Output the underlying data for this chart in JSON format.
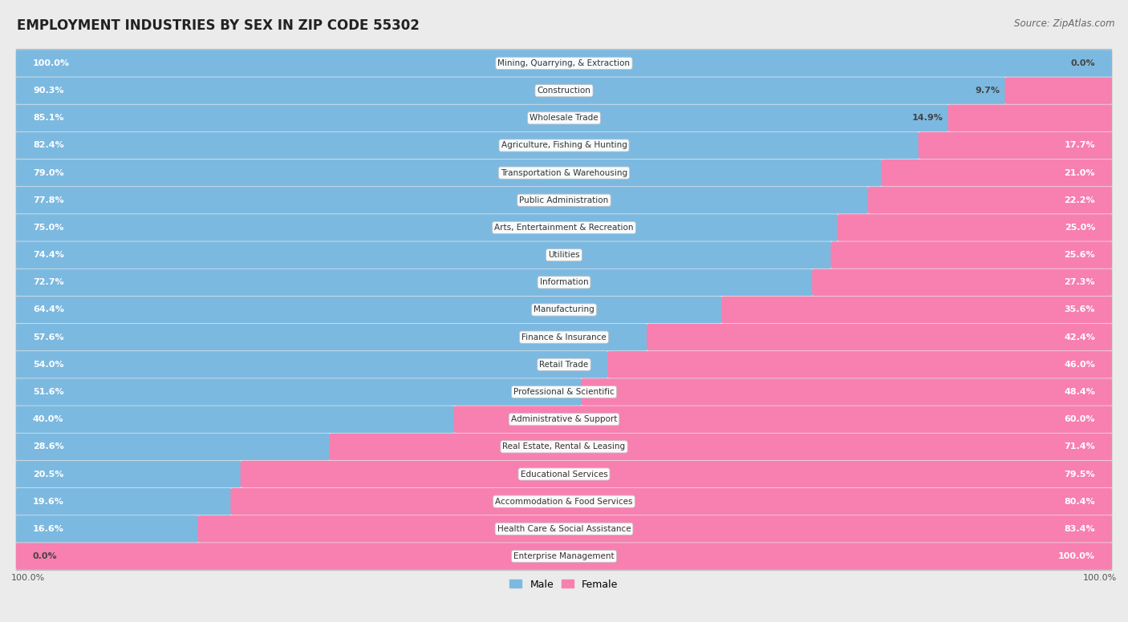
{
  "title": "EMPLOYMENT INDUSTRIES BY SEX IN ZIP CODE 55302",
  "source": "Source: ZipAtlas.com",
  "industries": [
    "Mining, Quarrying, & Extraction",
    "Construction",
    "Wholesale Trade",
    "Agriculture, Fishing & Hunting",
    "Transportation & Warehousing",
    "Public Administration",
    "Arts, Entertainment & Recreation",
    "Utilities",
    "Information",
    "Manufacturing",
    "Finance & Insurance",
    "Retail Trade",
    "Professional & Scientific",
    "Administrative & Support",
    "Real Estate, Rental & Leasing",
    "Educational Services",
    "Accommodation & Food Services",
    "Health Care & Social Assistance",
    "Enterprise Management"
  ],
  "male_pct": [
    100.0,
    90.3,
    85.1,
    82.4,
    79.0,
    77.8,
    75.0,
    74.4,
    72.7,
    64.4,
    57.6,
    54.0,
    51.6,
    40.0,
    28.6,
    20.5,
    19.6,
    16.6,
    0.0
  ],
  "female_pct": [
    0.0,
    9.7,
    14.9,
    17.7,
    21.0,
    22.2,
    25.0,
    25.6,
    27.3,
    35.6,
    42.4,
    46.0,
    48.4,
    60.0,
    71.4,
    79.5,
    80.4,
    83.4,
    100.0
  ],
  "male_color": "#7cb9e0",
  "female_color": "#f780b0",
  "bg_color": "#ebebeb",
  "row_bg": "#ffffff",
  "title_fontsize": 12,
  "source_fontsize": 8.5,
  "bar_label_fontsize": 8,
  "industry_label_fontsize": 7.5,
  "legend_fontsize": 9
}
